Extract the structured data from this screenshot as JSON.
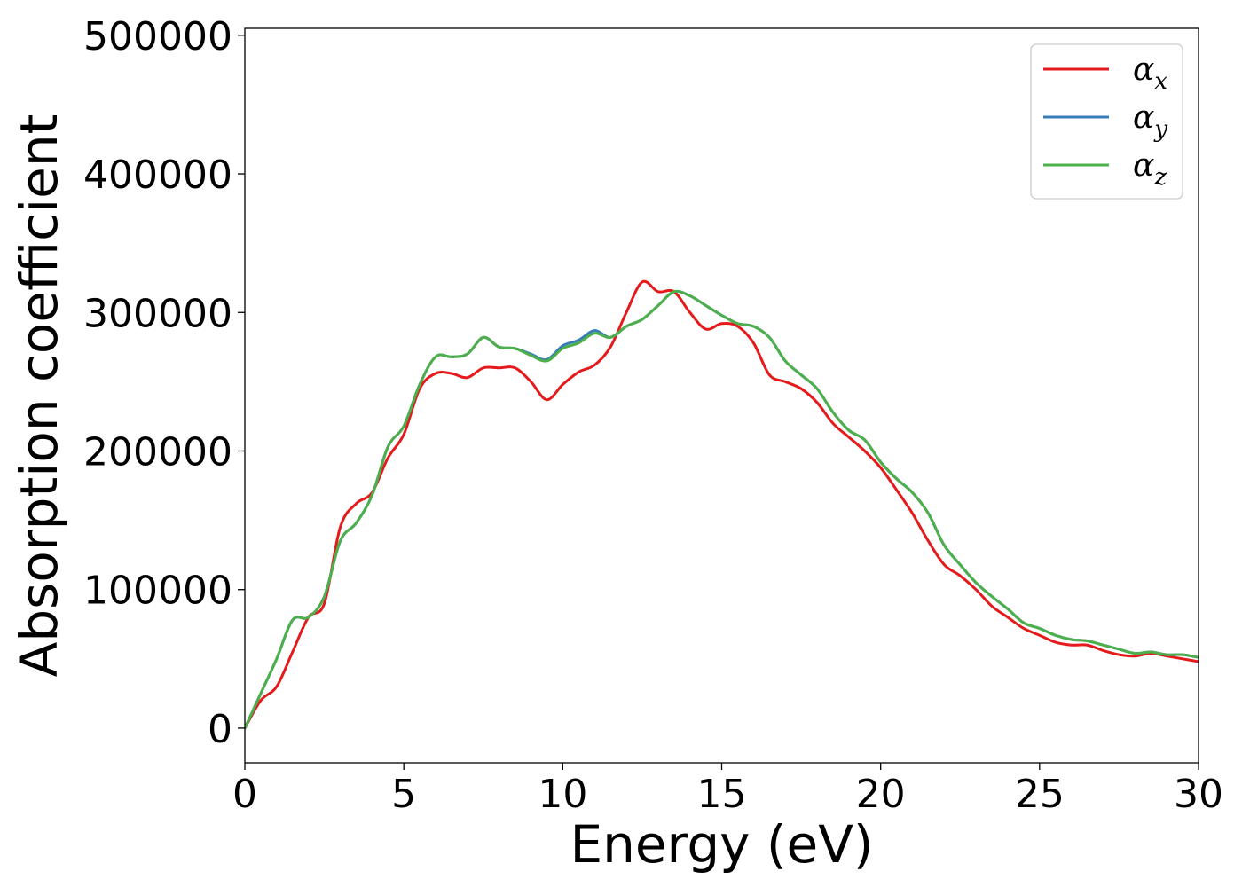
{
  "chart_data": {
    "type": "line",
    "xlabel": "Energy (eV)",
    "ylabel": "Absorption coefficient",
    "xlim": [
      0,
      30
    ],
    "ylim": [
      -25000,
      505000
    ],
    "x_ticks": [
      0,
      5,
      10,
      15,
      20,
      25,
      30
    ],
    "y_ticks": [
      0,
      100000,
      200000,
      300000,
      400000,
      500000
    ],
    "x_tick_labels": [
      "0",
      "5",
      "10",
      "15",
      "20",
      "25",
      "30"
    ],
    "y_tick_labels": [
      "0",
      "100000",
      "200000",
      "300000",
      "400000",
      "500000"
    ],
    "grid": false,
    "legend_position": "top-right",
    "series": [
      {
        "name": "α_x",
        "legend_symbol": "α",
        "legend_subscript": "x",
        "color": "#e41a1c",
        "x": [
          0,
          0.5,
          1,
          1.5,
          2,
          2.5,
          3,
          3.5,
          4,
          4.5,
          5,
          5.5,
          6,
          6.5,
          7,
          7.5,
          8,
          8.5,
          9,
          9.5,
          10,
          10.5,
          11,
          11.5,
          12,
          12.5,
          13,
          13.5,
          14,
          14.5,
          15,
          15.5,
          16,
          16.5,
          17,
          17.5,
          18,
          18.5,
          19,
          19.5,
          20,
          20.5,
          21,
          21.5,
          22,
          22.5,
          23,
          23.5,
          24,
          24.5,
          25,
          25.5,
          26,
          26.5,
          27,
          27.5,
          28,
          28.5,
          29,
          29.5,
          30
        ],
        "y": [
          0,
          20000,
          30000,
          55000,
          80000,
          90000,
          145000,
          162000,
          170000,
          195000,
          212000,
          245000,
          256000,
          256000,
          253000,
          260000,
          260000,
          260000,
          250000,
          237000,
          248000,
          257000,
          262000,
          275000,
          300000,
          322000,
          315000,
          315000,
          300000,
          288000,
          292000,
          290000,
          278000,
          255000,
          250000,
          245000,
          235000,
          220000,
          210000,
          200000,
          188000,
          172000,
          155000,
          135000,
          118000,
          110000,
          100000,
          88000,
          80000,
          72000,
          67000,
          62000,
          60000,
          60000,
          56000,
          53000,
          52000,
          54000,
          52000,
          50000,
          48000
        ]
      },
      {
        "name": "α_y",
        "legend_symbol": "α",
        "legend_subscript": "y",
        "color": "#377eb8",
        "x": [
          0,
          0.5,
          1,
          1.5,
          2,
          2.5,
          3,
          3.5,
          4,
          4.5,
          5,
          5.5,
          6,
          6.5,
          7,
          7.5,
          8,
          8.5,
          9,
          9.5,
          10,
          10.5,
          11,
          11.5,
          12,
          12.5,
          13,
          13.5,
          14,
          14.5,
          15,
          15.5,
          16,
          16.5,
          17,
          17.5,
          18,
          18.5,
          19,
          19.5,
          20,
          20.5,
          21,
          21.5,
          22,
          22.5,
          23,
          23.5,
          24,
          24.5,
          25,
          25.5,
          26,
          26.5,
          27,
          27.5,
          28,
          28.5,
          29,
          29.5,
          30
        ],
        "y": [
          0,
          25000,
          50000,
          78000,
          80000,
          95000,
          135000,
          148000,
          168000,
          203000,
          218000,
          248000,
          268000,
          268000,
          270000,
          282000,
          275000,
          274000,
          270000,
          266000,
          276000,
          280000,
          287000,
          282000,
          290000,
          295000,
          305000,
          315000,
          312000,
          305000,
          298000,
          292000,
          290000,
          282000,
          265000,
          255000,
          245000,
          228000,
          215000,
          208000,
          192000,
          180000,
          170000,
          155000,
          132000,
          118000,
          105000,
          95000,
          86000,
          76000,
          72000,
          67000,
          64000,
          63000,
          60000,
          57000,
          54000,
          55000,
          53000,
          53000,
          51000
        ]
      },
      {
        "name": "α_z",
        "legend_symbol": "α",
        "legend_subscript": "z",
        "color": "#4daf4a",
        "x": [
          0,
          0.5,
          1,
          1.5,
          2,
          2.5,
          3,
          3.5,
          4,
          4.5,
          5,
          5.5,
          6,
          6.5,
          7,
          7.5,
          8,
          8.5,
          9,
          9.5,
          10,
          10.5,
          11,
          11.5,
          12,
          12.5,
          13,
          13.5,
          14,
          14.5,
          15,
          15.5,
          16,
          16.5,
          17,
          17.5,
          18,
          18.5,
          19,
          19.5,
          20,
          20.5,
          21,
          21.5,
          22,
          22.5,
          23,
          23.5,
          24,
          24.5,
          25,
          25.5,
          26,
          26.5,
          27,
          27.5,
          28,
          28.5,
          29,
          29.5,
          30
        ],
        "y": [
          0,
          25000,
          50000,
          78000,
          80000,
          95000,
          135000,
          148000,
          168000,
          203000,
          218000,
          248000,
          268000,
          268000,
          270000,
          282000,
          275000,
          274000,
          269000,
          265000,
          274000,
          278000,
          285000,
          282000,
          290000,
          295000,
          305000,
          315000,
          312000,
          305000,
          298000,
          292000,
          290000,
          282000,
          265000,
          255000,
          245000,
          228000,
          215000,
          208000,
          192000,
          180000,
          170000,
          155000,
          132000,
          118000,
          105000,
          95000,
          86000,
          76000,
          72000,
          67000,
          64000,
          63000,
          60000,
          57000,
          54000,
          55000,
          53000,
          53000,
          51000
        ]
      }
    ]
  }
}
